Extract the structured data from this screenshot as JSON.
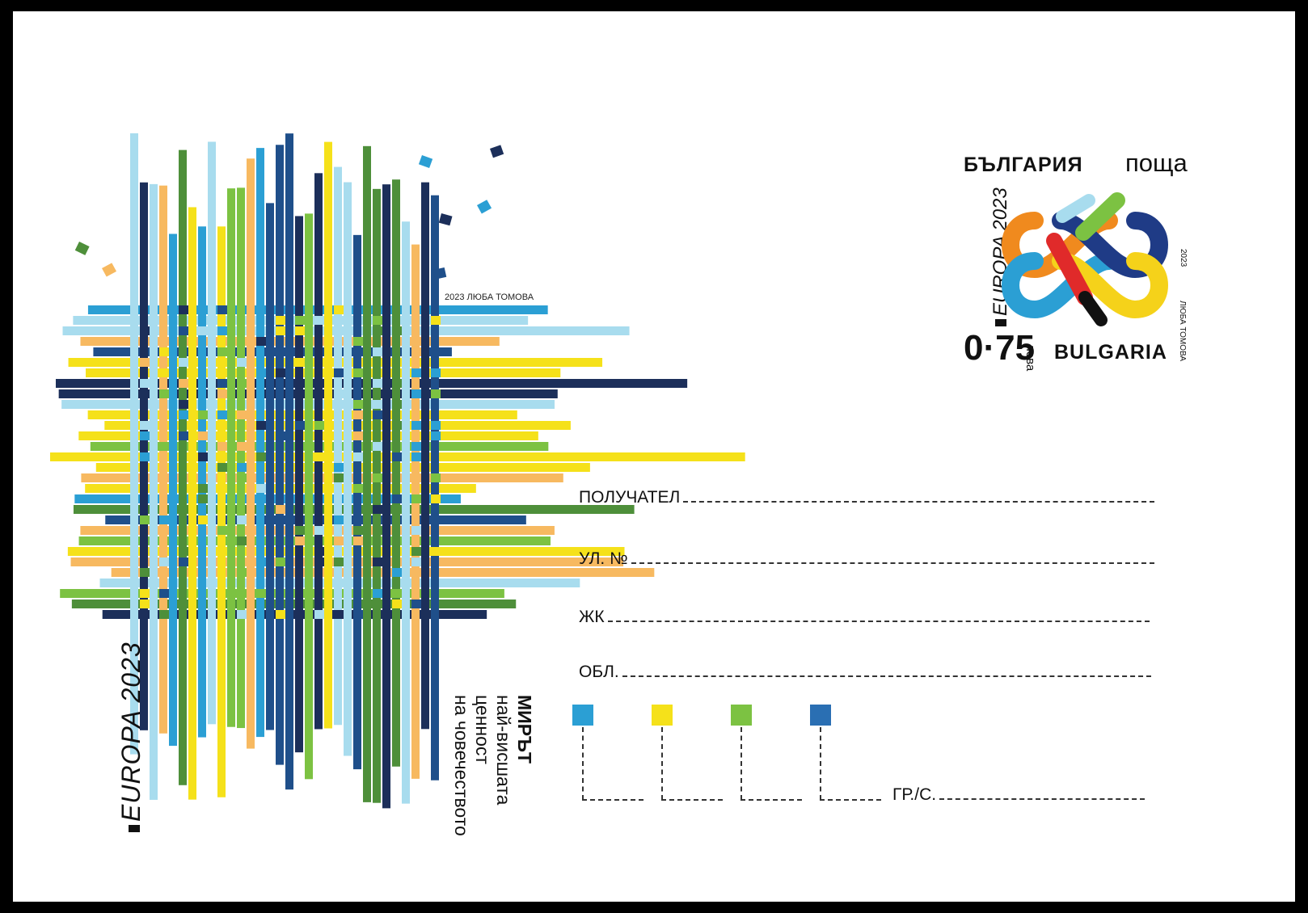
{
  "card": {
    "credit": "2023 ЛЮБА ТОМОВА",
    "europa_label": "EUROPA 2023",
    "motto": {
      "title": "МИРЪТ",
      "line2": "най-висшата",
      "line3": "ценност",
      "line4": "на човечеството"
    },
    "artwork_colors": [
      "#2b9fd4",
      "#f5e11a",
      "#7cc242",
      "#1f4f8a",
      "#a8dcee",
      "#4e8f3a",
      "#f7b960",
      "#1c2f5a"
    ]
  },
  "stamp": {
    "country_bg": "БЪЛГАРИЯ",
    "post": "поща",
    "europa": "EUROPA 2023",
    "year": "2023",
    "author": "ЛЮБА ТОМОВА",
    "price": "0·75",
    "currency": "лева",
    "country_en": "BULGARIA",
    "logo_colors": [
      "#f08a1e",
      "#2b9fd4",
      "#f5d21a",
      "#1f3b86",
      "#7cc242",
      "#e02a2a",
      "#111111"
    ]
  },
  "address": {
    "recipient": "ПОЛУЧАТЕЛ",
    "street": "УЛ. №",
    "district": "ЖК",
    "region": "ОБЛ.",
    "city": "ГР./С.",
    "postcode_colors": [
      "#2b9fd4",
      "#f5e11a",
      "#7cc242",
      "#2a6fb3"
    ]
  }
}
